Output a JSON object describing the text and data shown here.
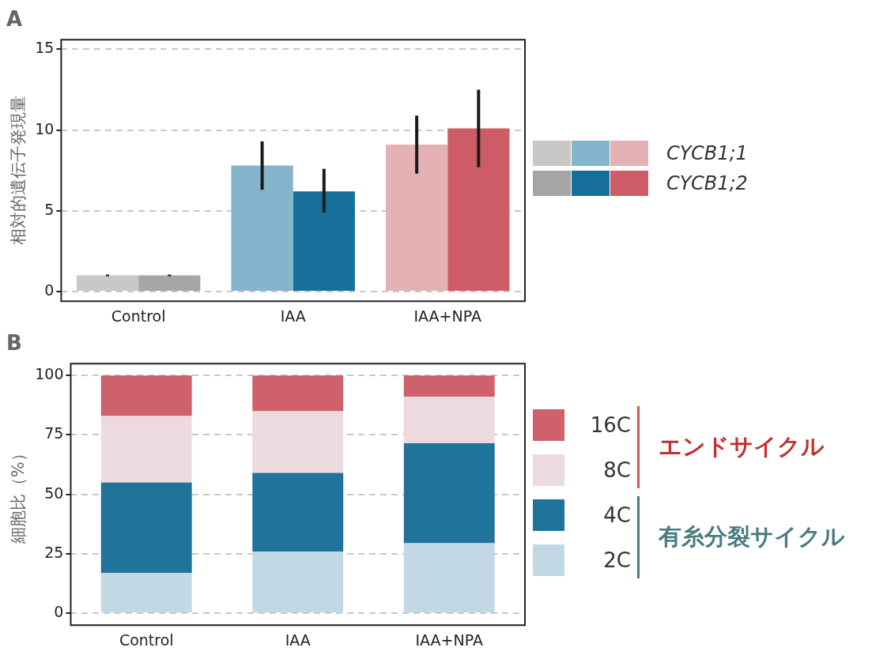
{
  "chart_data": [
    {
      "type": "bar",
      "title": "A",
      "ylabel": "相対的遺伝子発現量",
      "categories": [
        "Control",
        "IAA",
        "IAA+NPA"
      ],
      "ylim": [
        -0.6,
        15.6
      ],
      "yticks": [
        0,
        5,
        10,
        15
      ],
      "grid": "y",
      "legend": "right",
      "series": [
        {
          "name": "CYCB1;1",
          "colors": [
            "#c8c8c7",
            "#84b5cc",
            "#e4b1b5"
          ],
          "values": [
            1.0,
            7.8,
            9.1
          ],
          "errors": [
            0.05,
            [
              6.3,
              9.3
            ],
            [
              7.3,
              10.9
            ]
          ]
        },
        {
          "name": "CYCB1;2",
          "colors": [
            "#a5a5a5",
            "#166e9a",
            "#cd5c67"
          ],
          "values": [
            1.0,
            6.2,
            10.1
          ],
          "errors": [
            0.05,
            [
              4.9,
              7.6
            ],
            [
              7.7,
              12.5
            ]
          ]
        }
      ]
    },
    {
      "type": "bar",
      "title": "B",
      "ylabel": "細胞比（%）",
      "categories": [
        "Control",
        "IAA",
        "IAA+NPA"
      ],
      "stacked": true,
      "ylim": [
        -5,
        105
      ],
      "yticks": [
        0,
        25,
        50,
        75,
        100
      ],
      "grid": "y",
      "legend": "right",
      "annotations": [
        "エンドサイクル",
        "有糸分裂サイクル"
      ],
      "series": [
        {
          "name": "2C",
          "color": "#c2d8e4",
          "values": [
            17,
            26,
            29.5
          ]
        },
        {
          "name": "4C",
          "color": "#20739b",
          "values": [
            38,
            33,
            42
          ]
        },
        {
          "name": "8C",
          "color": "#eddade",
          "values": [
            28,
            26,
            19.5
          ]
        },
        {
          "name": "16C",
          "color": "#ce616b",
          "values": [
            17,
            15,
            9
          ]
        }
      ]
    }
  ]
}
